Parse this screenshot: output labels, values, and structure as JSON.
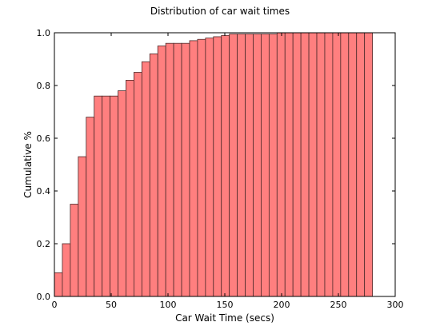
{
  "chart_data": {
    "type": "bar",
    "title": "Distribution of car wait times",
    "xlabel": "Car Wait Time (secs)",
    "ylabel": "Cumulative %",
    "xlim": [
      0,
      300
    ],
    "ylim": [
      0.0,
      1.0
    ],
    "xticks": [
      "0",
      "50",
      "100",
      "150",
      "200",
      "250",
      "300"
    ],
    "yticks": [
      "0.0",
      "0.2",
      "0.4",
      "0.6",
      "0.8",
      "1.0"
    ],
    "bin_width": 7,
    "bins_start": [
      0,
      7,
      14,
      21,
      28,
      35,
      42,
      49,
      56,
      63,
      70,
      77,
      84,
      91,
      98,
      105,
      112,
      119,
      126,
      133,
      140,
      147,
      154,
      161,
      168,
      175,
      182,
      189,
      196,
      203,
      210,
      217,
      224,
      231,
      238,
      245,
      252,
      259,
      266,
      273
    ],
    "values": [
      0.09,
      0.2,
      0.35,
      0.53,
      0.68,
      0.76,
      0.76,
      0.76,
      0.78,
      0.82,
      0.85,
      0.89,
      0.92,
      0.95,
      0.96,
      0.96,
      0.96,
      0.97,
      0.975,
      0.98,
      0.985,
      0.99,
      0.995,
      0.995,
      0.995,
      0.995,
      0.995,
      0.995,
      1.0,
      1.0,
      1.0,
      1.0,
      1.0,
      1.0,
      1.0,
      1.0,
      1.0,
      1.0,
      1.0,
      1.0
    ],
    "bar_color": "#ff7f7f",
    "edge_color": "#4d2a2a"
  }
}
